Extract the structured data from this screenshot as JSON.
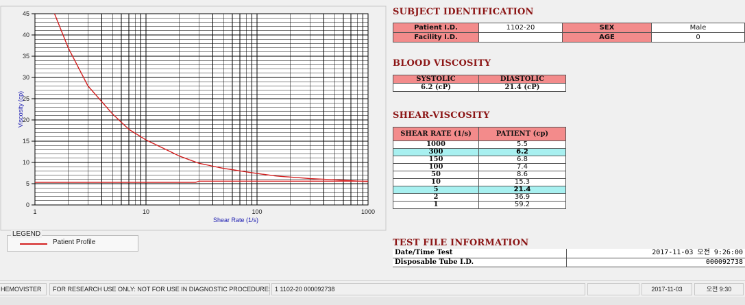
{
  "chart_data": {
    "type": "line",
    "xlabel": "Shear Rate (1/s)",
    "ylabel": "Viscosity (cp)",
    "xscale": "log",
    "xlim": [
      1,
      1000
    ],
    "ylim": [
      0,
      45
    ],
    "x_ticks": [
      "1",
      "10",
      "100",
      "1000"
    ],
    "y_ticks": [
      "0",
      "5",
      "10",
      "15",
      "20",
      "25",
      "30",
      "35",
      "40",
      "45"
    ],
    "grid": true,
    "series": [
      {
        "name": "Patient Profile",
        "color": "#d42020",
        "x": [
          1.5,
          2,
          3,
          5,
          7,
          10,
          20,
          30,
          50,
          100,
          150,
          300,
          1000
        ],
        "y": [
          45,
          36.9,
          28,
          21.4,
          17.8,
          15.3,
          11.5,
          9.8,
          8.6,
          7.4,
          6.8,
          6.2,
          5.5
        ]
      },
      {
        "color": "#d42020",
        "x": [
          1,
          28,
          30,
          1000
        ],
        "y": [
          5.3,
          5.3,
          5.6,
          5.6
        ]
      }
    ]
  },
  "legend": {
    "title": "LEGEND",
    "items": [
      {
        "label": "Patient Profile",
        "color": "#d42020"
      }
    ]
  },
  "subject": {
    "title": "SUBJECT IDENTIFICATION",
    "patient_id_label": "Patient I.D.",
    "patient_id": "1102-20",
    "sex_label": "SEX",
    "sex": "Male",
    "facility_label": "Facility I.D.",
    "facility": "",
    "age_label": "AGE",
    "age": "0"
  },
  "blood": {
    "title": "BLOOD VISCOSITY",
    "systolic_label": "SYSTOLIC",
    "diastolic_label": "DIASTOLIC",
    "systolic": "6.2 (cP)",
    "diastolic": "21.4 (cP)"
  },
  "shear": {
    "title": "SHEAR-VISCOSITY",
    "col_rate": "SHEAR RATE (1/s)",
    "col_patient": "PATIENT (cp)",
    "rows": [
      {
        "rate": "1000",
        "value": "5.5",
        "highlight": false
      },
      {
        "rate": "300",
        "value": "6.2",
        "highlight": true
      },
      {
        "rate": "150",
        "value": "6.8",
        "highlight": false
      },
      {
        "rate": "100",
        "value": "7.4",
        "highlight": false
      },
      {
        "rate": "50",
        "value": "8.6",
        "highlight": false
      },
      {
        "rate": "10",
        "value": "15.3",
        "highlight": false
      },
      {
        "rate": "5",
        "value": "21.4",
        "highlight": true
      },
      {
        "rate": "2",
        "value": "36.9",
        "highlight": false
      },
      {
        "rate": "1",
        "value": "59.2",
        "highlight": false
      }
    ]
  },
  "file": {
    "title": "TEST FILE INFORMATION",
    "datetime_label": "Date/Time Test",
    "datetime": "2017-11-03  오전 9:26:00",
    "tube_label": "Disposable Tube I.D.",
    "tube": "000092738"
  },
  "statusbar": {
    "app": "HEMOVISTER",
    "notice": "FOR RESEARCH USE ONLY: NOT FOR USE IN DIAGNOSTIC PROCEDURES",
    "record": "1  1102-20  000092738",
    "empty": "",
    "date": "2017-11-03",
    "time": "오전 9:30"
  }
}
